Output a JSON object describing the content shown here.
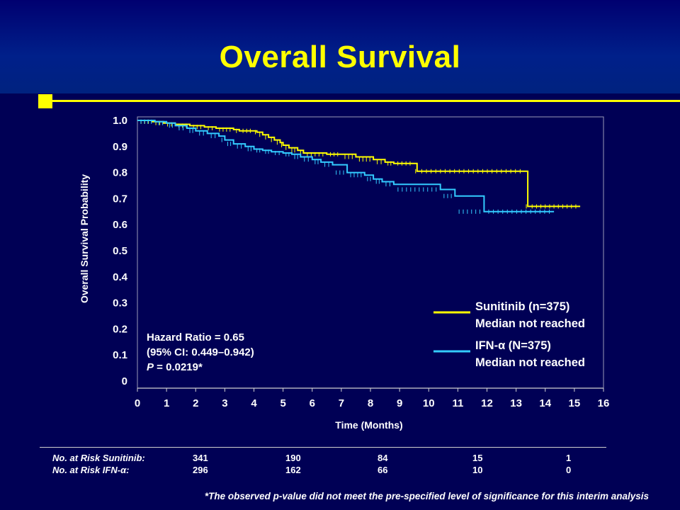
{
  "title": "Overall Survival",
  "colors": {
    "background": "#000055",
    "title": "#ffff00",
    "sunitinib": "#ffff00",
    "ifn": "#33ccff"
  },
  "chart_data": {
    "type": "line",
    "step": true,
    "xlabel": "Time (Months)",
    "ylabel": "Overall Survival Probability",
    "xlim": [
      0,
      16
    ],
    "ylim": [
      0,
      1.0
    ],
    "xticks": [
      "0",
      "1",
      "2",
      "3",
      "4",
      "5",
      "6",
      "7",
      "8",
      "9",
      "10",
      "11",
      "12",
      "13",
      "14",
      "15",
      "16"
    ],
    "yticks": [
      "0",
      "0.1",
      "0.2",
      "0.3",
      "0.4",
      "0.5",
      "0.6",
      "0.7",
      "0.8",
      "0.9",
      "1.0"
    ],
    "grid": false,
    "legend_position": "right",
    "series": [
      {
        "name": "Sunitinib (n=375)",
        "subtitle": "Median not reached",
        "color": "#ffff00",
        "x": [
          0,
          0.5,
          0.9,
          1.3,
          1.8,
          2.3,
          2.7,
          3.3,
          3.5,
          4.0,
          4.1,
          4.3,
          4.5,
          4.7,
          4.9,
          5.0,
          5.2,
          5.5,
          5.7,
          6.5,
          7.0,
          7.5,
          8.1,
          8.5,
          8.8,
          9.5,
          9.6,
          13.3,
          13.4,
          15.2
        ],
        "y": [
          1.0,
          0.995,
          0.99,
          0.985,
          0.98,
          0.975,
          0.97,
          0.965,
          0.96,
          0.96,
          0.955,
          0.945,
          0.935,
          0.925,
          0.915,
          0.905,
          0.895,
          0.885,
          0.875,
          0.87,
          0.87,
          0.86,
          0.85,
          0.84,
          0.835,
          0.835,
          0.805,
          0.805,
          0.67,
          0.67
        ]
      },
      {
        "name": "IFN-α (N=375)",
        "subtitle": "Median not reached",
        "color": "#33ccff",
        "x": [
          0,
          0.6,
          1.0,
          1.3,
          1.7,
          2.0,
          2.4,
          2.8,
          3.0,
          3.3,
          3.7,
          4.0,
          4.3,
          4.6,
          5.0,
          5.3,
          5.6,
          6.0,
          6.3,
          6.7,
          7.2,
          7.8,
          8.1,
          8.4,
          8.8,
          10.4,
          10.9,
          11.9,
          14.3
        ],
        "y": [
          1.0,
          0.995,
          0.99,
          0.98,
          0.97,
          0.96,
          0.95,
          0.94,
          0.925,
          0.91,
          0.9,
          0.89,
          0.885,
          0.88,
          0.875,
          0.87,
          0.86,
          0.85,
          0.84,
          0.83,
          0.8,
          0.79,
          0.775,
          0.765,
          0.755,
          0.735,
          0.71,
          0.65,
          0.65
        ]
      }
    ],
    "annotation": {
      "line1": "Hazard Ratio = 0.65",
      "line2": "(95% CI: 0.449–0.942)",
      "line3_italic": "P",
      "line3_rest": " = 0.0219*"
    }
  },
  "risk_table": {
    "sunitinib_label": "No. at Risk Sunitinib:",
    "ifn_label": "No. at Risk IFN-α:",
    "sunitinib_values": [
      "341",
      "190",
      "84",
      "15",
      "1"
    ],
    "ifn_values": [
      "296",
      "162",
      "66",
      "10",
      "0"
    ]
  },
  "footnote": "*The observed p-value did not meet the pre-specified level of significance for this interim analysis"
}
